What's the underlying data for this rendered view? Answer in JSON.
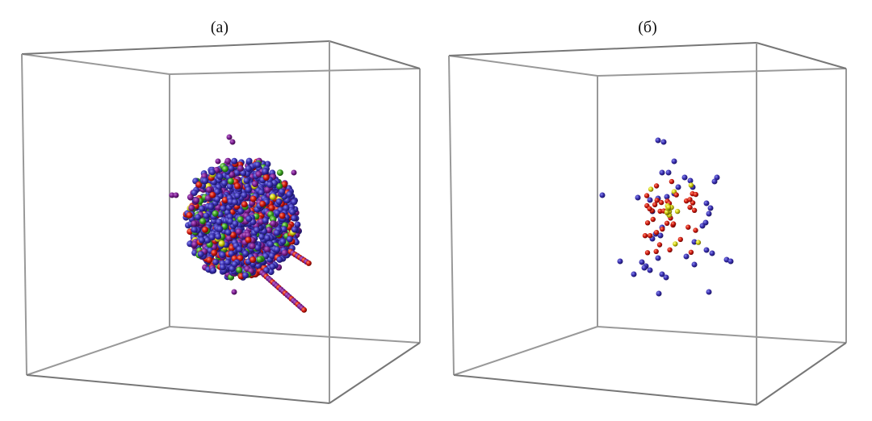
{
  "panels": [
    {
      "label": "(а)"
    },
    {
      "label": "(б)"
    }
  ]
}
